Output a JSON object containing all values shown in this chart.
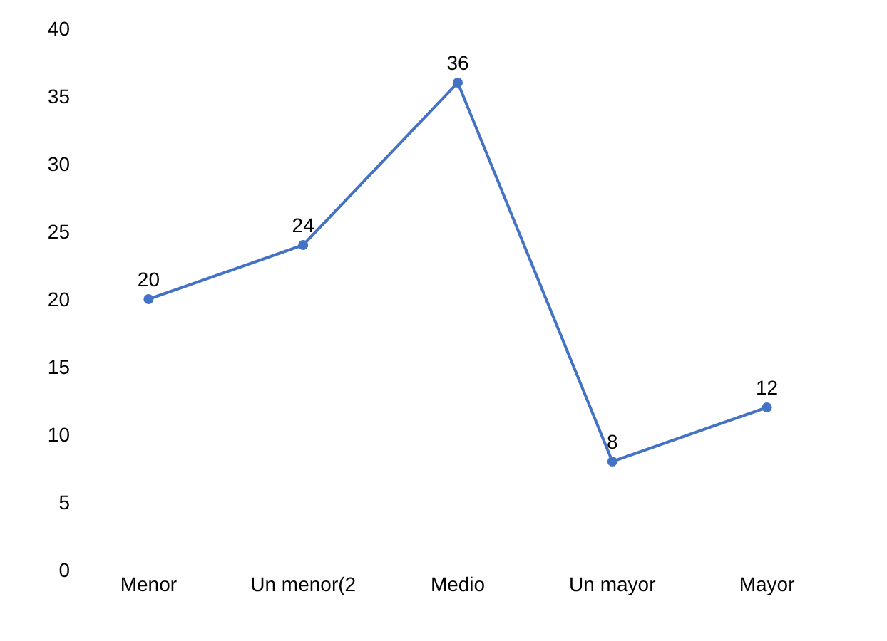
{
  "chart_data": {
    "type": "line",
    "categories": [
      "Menor",
      "Un menor(2",
      "Medio",
      "Un mayor",
      "Mayor"
    ],
    "series": [
      {
        "color": "#4472c4",
        "values": [
          20,
          24,
          36,
          8,
          12
        ]
      }
    ],
    "ylim": [
      0,
      40
    ],
    "yticks": [
      0,
      5,
      10,
      15,
      20,
      25,
      30,
      35,
      40
    ],
    "data_labels": true,
    "legend": false,
    "marker": "circle",
    "line_style": "solid"
  }
}
